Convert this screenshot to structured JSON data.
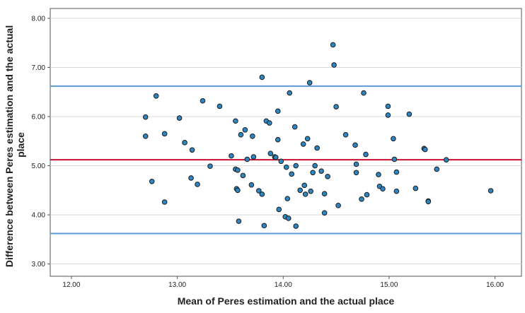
{
  "chart_data": {
    "type": "scatter",
    "xlabel": "Mean of Peres estimation and the actual place",
    "ylabel_lines": [
      "Difference between Peres estimation and the actual",
      "place"
    ],
    "xlim": [
      11.8,
      16.25
    ],
    "ylim": [
      2.75,
      8.2
    ],
    "x_ticks": [
      12.0,
      13.0,
      14.0,
      15.0,
      16.0
    ],
    "x_tick_labels": [
      "12.00",
      "13.00",
      "14.00",
      "15.00",
      "16.00"
    ],
    "y_ticks": [
      3.0,
      4.0,
      5.0,
      6.0,
      7.0,
      8.0
    ],
    "y_tick_labels": [
      "3.00",
      "4.00",
      "5.00",
      "6.00",
      "7.00",
      "8.00"
    ],
    "grid": "horizontal",
    "reference_lines": [
      {
        "y": 6.62,
        "color": "#5b9bd5"
      },
      {
        "y": 5.12,
        "color": "#c8102e"
      },
      {
        "y": 3.62,
        "color": "#5b9bd5"
      }
    ],
    "point_color": "#2e86c1",
    "points": [
      [
        12.7,
        5.99
      ],
      [
        12.7,
        5.6
      ],
      [
        12.76,
        4.68
      ],
      [
        12.8,
        6.42
      ],
      [
        12.88,
        5.65
      ],
      [
        12.88,
        4.26
      ],
      [
        13.02,
        5.97
      ],
      [
        13.07,
        5.47
      ],
      [
        13.13,
        4.75
      ],
      [
        13.14,
        5.32
      ],
      [
        13.19,
        4.62
      ],
      [
        13.24,
        6.32
      ],
      [
        13.31,
        4.99
      ],
      [
        13.4,
        6.21
      ],
      [
        13.51,
        5.2
      ],
      [
        13.55,
        5.91
      ],
      [
        13.55,
        4.93
      ],
      [
        13.56,
        4.53
      ],
      [
        13.57,
        4.91
      ],
      [
        13.57,
        4.5
      ],
      [
        13.58,
        3.87
      ],
      [
        13.6,
        5.63
      ],
      [
        13.62,
        4.8
      ],
      [
        13.64,
        5.73
      ],
      [
        13.66,
        5.13
      ],
      [
        13.7,
        4.61
      ],
      [
        13.71,
        5.6
      ],
      [
        13.72,
        5.18
      ],
      [
        13.77,
        4.49
      ],
      [
        13.8,
        6.8
      ],
      [
        13.8,
        4.42
      ],
      [
        13.82,
        3.78
      ],
      [
        13.84,
        5.91
      ],
      [
        13.87,
        5.87
      ],
      [
        13.88,
        5.25
      ],
      [
        13.92,
        5.18
      ],
      [
        13.93,
        5.17
      ],
      [
        13.95,
        6.11
      ],
      [
        13.95,
        5.53
      ],
      [
        13.96,
        4.11
      ],
      [
        13.98,
        5.09
      ],
      [
        14.02,
        3.96
      ],
      [
        14.03,
        4.97
      ],
      [
        14.04,
        4.33
      ],
      [
        14.05,
        3.93
      ],
      [
        14.06,
        6.48
      ],
      [
        14.08,
        4.83
      ],
      [
        14.11,
        5.79
      ],
      [
        14.12,
        5.0
      ],
      [
        14.12,
        3.77
      ],
      [
        14.16,
        4.5
      ],
      [
        14.19,
        5.44
      ],
      [
        14.2,
        4.6
      ],
      [
        14.21,
        4.42
      ],
      [
        14.23,
        5.55
      ],
      [
        14.25,
        6.69
      ],
      [
        14.26,
        4.48
      ],
      [
        14.28,
        4.86
      ],
      [
        14.3,
        5.0
      ],
      [
        14.32,
        5.36
      ],
      [
        14.36,
        4.89
      ],
      [
        14.39,
        4.43
      ],
      [
        14.39,
        4.04
      ],
      [
        14.42,
        4.78
      ],
      [
        14.47,
        7.46
      ],
      [
        14.48,
        7.05
      ],
      [
        14.5,
        6.2
      ],
      [
        14.52,
        4.19
      ],
      [
        14.59,
        5.63
      ],
      [
        14.68,
        5.42
      ],
      [
        14.69,
        5.03
      ],
      [
        14.69,
        4.86
      ],
      [
        14.74,
        4.32
      ],
      [
        14.76,
        6.48
      ],
      [
        14.78,
        5.23
      ],
      [
        14.79,
        4.41
      ],
      [
        14.9,
        4.82
      ],
      [
        14.91,
        4.58
      ],
      [
        14.94,
        4.53
      ],
      [
        14.99,
        6.21
      ],
      [
        14.99,
        6.03
      ],
      [
        15.04,
        5.55
      ],
      [
        15.05,
        5.13
      ],
      [
        15.07,
        4.87
      ],
      [
        15.07,
        4.48
      ],
      [
        15.19,
        6.05
      ],
      [
        15.25,
        4.54
      ],
      [
        15.33,
        5.35
      ],
      [
        15.34,
        5.33
      ],
      [
        15.37,
        4.28
      ],
      [
        15.37,
        4.27
      ],
      [
        15.45,
        4.93
      ],
      [
        15.54,
        5.12
      ],
      [
        15.96,
        4.49
      ]
    ]
  }
}
